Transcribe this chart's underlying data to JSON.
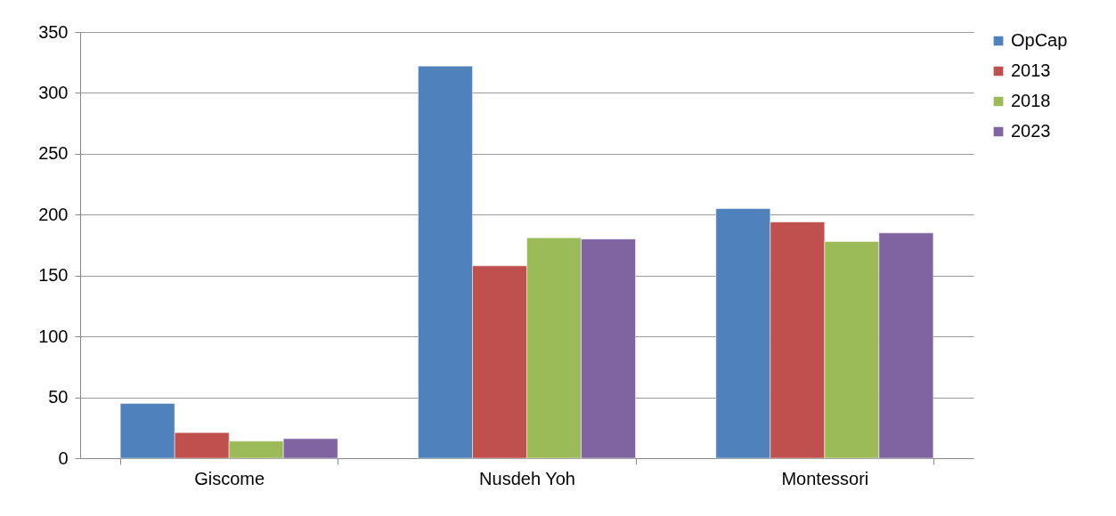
{
  "chart_data": {
    "type": "bar",
    "categories": [
      "Giscome",
      "Nusdeh Yoh",
      "Montessori"
    ],
    "series": [
      {
        "name": "OpCap",
        "color": "#4f81bd",
        "values": [
          45,
          322,
          205
        ]
      },
      {
        "name": "2013",
        "color": "#c0504d",
        "values": [
          21,
          158,
          194
        ]
      },
      {
        "name": "2018",
        "color": "#9bbb59",
        "values": [
          14,
          181,
          178
        ]
      },
      {
        "name": "2023",
        "color": "#8064a2",
        "values": [
          16,
          180,
          185
        ]
      }
    ],
    "ylim": [
      0,
      350
    ],
    "yticks": [
      0,
      50,
      100,
      150,
      200,
      250,
      300,
      350
    ],
    "grid": "y",
    "legend": "right"
  }
}
